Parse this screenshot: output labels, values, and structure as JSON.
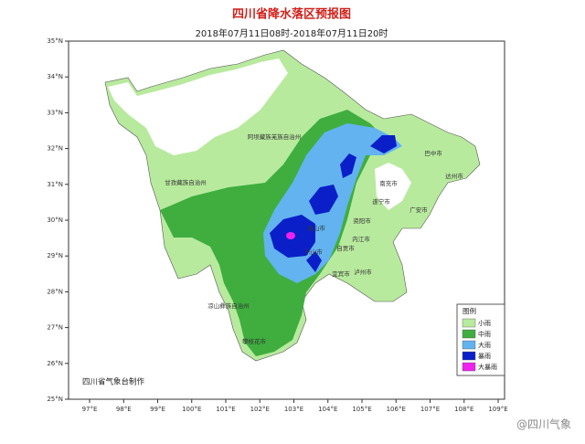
{
  "header": {
    "title": "四川省降水落区预报图",
    "subtitle": "2018年07月11日08时-2018年07月11日20时"
  },
  "map": {
    "lat_ticks": [
      {
        "value": 25,
        "label": "25°N"
      },
      {
        "value": 26,
        "label": "26°N"
      },
      {
        "value": 27,
        "label": "27°N"
      },
      {
        "value": 28,
        "label": "28°N"
      },
      {
        "value": 29,
        "label": "29°N"
      },
      {
        "value": 30,
        "label": "30°N"
      },
      {
        "value": 31,
        "label": "31°N"
      },
      {
        "value": 32,
        "label": "32°N"
      },
      {
        "value": 33,
        "label": "33°N"
      },
      {
        "value": 34,
        "label": "34°N"
      },
      {
        "value": 35,
        "label": "35°N"
      }
    ],
    "lon_ticks": [
      {
        "value": 97,
        "label": "97°E"
      },
      {
        "value": 98,
        "label": "98°E"
      },
      {
        "value": 99,
        "label": "99°E"
      },
      {
        "value": 100,
        "label": "100°E"
      },
      {
        "value": 101,
        "label": "101°E"
      },
      {
        "value": 102,
        "label": "102°E"
      },
      {
        "value": 103,
        "label": "103°E"
      },
      {
        "value": 104,
        "label": "104°E"
      },
      {
        "value": 105,
        "label": "105°E"
      },
      {
        "value": 106,
        "label": "106°E"
      },
      {
        "value": 107,
        "label": "107°E"
      },
      {
        "value": 108,
        "label": "108°E"
      },
      {
        "value": 109,
        "label": "109°E"
      }
    ],
    "regions": [
      "阿坝藏族羌族自治州",
      "甘孜藏族自治州",
      "凉山彝族自治州",
      "攀枝花市",
      "巴中市",
      "达州市",
      "南充市",
      "遂宁市",
      "广安市",
      "资阳市",
      "内江市",
      "自贡市",
      "泸州市",
      "宜宾市",
      "眉山市",
      "乐山市"
    ]
  },
  "legend": {
    "title": "图例",
    "items": [
      {
        "label": "小雨",
        "color": "#b8ea9e"
      },
      {
        "label": "中雨",
        "color": "#3fae3f"
      },
      {
        "label": "大雨",
        "color": "#62b3f0"
      },
      {
        "label": "暴雨",
        "color": "#0a1fc8"
      },
      {
        "label": "大暴雨",
        "color": "#ee22ee"
      }
    ]
  },
  "credit": "四川省气象台制作",
  "watermark": "@四川气象"
}
